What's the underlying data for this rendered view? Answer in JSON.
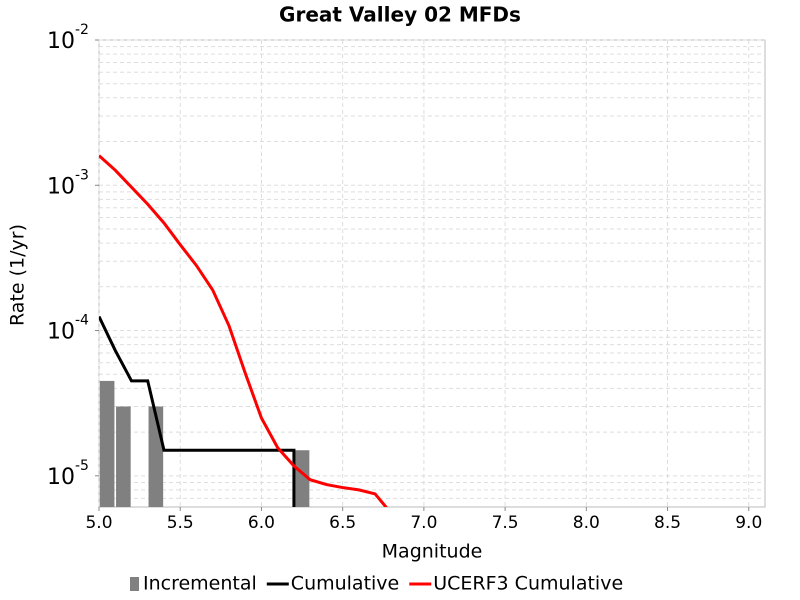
{
  "chart_data": {
    "type": "line",
    "title": "Great Valley 02 MFDs",
    "x_label": "Magnitude",
    "y_label": "Rate (1/yr)",
    "log_y": true,
    "grid": true,
    "xlim": [
      5.0,
      9.1
    ],
    "ylim": [
      6.1e-06,
      0.01
    ],
    "xticks": [
      {
        "value": 5.0,
        "label": "5.0"
      },
      {
        "value": 5.5,
        "label": "5.5"
      },
      {
        "value": 6.0,
        "label": "6.0"
      },
      {
        "value": 6.5,
        "label": "6.5"
      },
      {
        "value": 7.0,
        "label": "7.0"
      },
      {
        "value": 7.5,
        "label": "7.5"
      },
      {
        "value": 8.0,
        "label": "8.0"
      },
      {
        "value": 8.5,
        "label": "8.5"
      },
      {
        "value": 9.0,
        "label": "9.0"
      }
    ],
    "yticks": [
      {
        "value": 1e-05,
        "label": "10",
        "exponent": "-5"
      },
      {
        "value": 0.0001,
        "label": "10",
        "exponent": "-4"
      },
      {
        "value": 0.001,
        "label": "10",
        "exponent": "-3"
      },
      {
        "value": 0.01,
        "label": "10",
        "exponent": "-2"
      }
    ],
    "legend": "bottom",
    "series": [
      {
        "name": "Incremental",
        "type": "bar",
        "color": "#808080",
        "bar_width": 0.09,
        "x": [
          5.05,
          5.15,
          5.35,
          6.25
        ],
        "values": [
          4.5e-05,
          3e-05,
          3e-05,
          1.5e-05
        ]
      },
      {
        "name": "Cumulative",
        "type": "line",
        "color": "#000000",
        "x": [
          5.0,
          5.1,
          5.2,
          5.3,
          5.4,
          6.2,
          6.2
        ],
        "values": [
          0.000125,
          7.3e-05,
          4.5e-05,
          4.5e-05,
          1.5e-05,
          1.5e-05,
          1e-06
        ]
      },
      {
        "name": "UCERF3 Cumulative",
        "type": "line",
        "color": "#ff0000",
        "x": [
          5.0,
          5.1,
          5.2,
          5.3,
          5.4,
          5.5,
          5.6,
          5.7,
          5.8,
          5.9,
          6.0,
          6.1,
          6.2,
          6.3,
          6.4,
          6.5,
          6.6,
          6.7,
          6.8
        ],
        "values": [
          0.0016,
          0.00127,
          0.00097,
          0.00074,
          0.00055,
          0.00039,
          0.00028,
          0.00019,
          0.000108,
          5.1e-05,
          2.5e-05,
          1.56e-05,
          1.17e-05,
          9.4e-06,
          8.7e-06,
          8.3e-06,
          8e-06,
          7.5e-06,
          5.5e-06
        ]
      }
    ]
  }
}
